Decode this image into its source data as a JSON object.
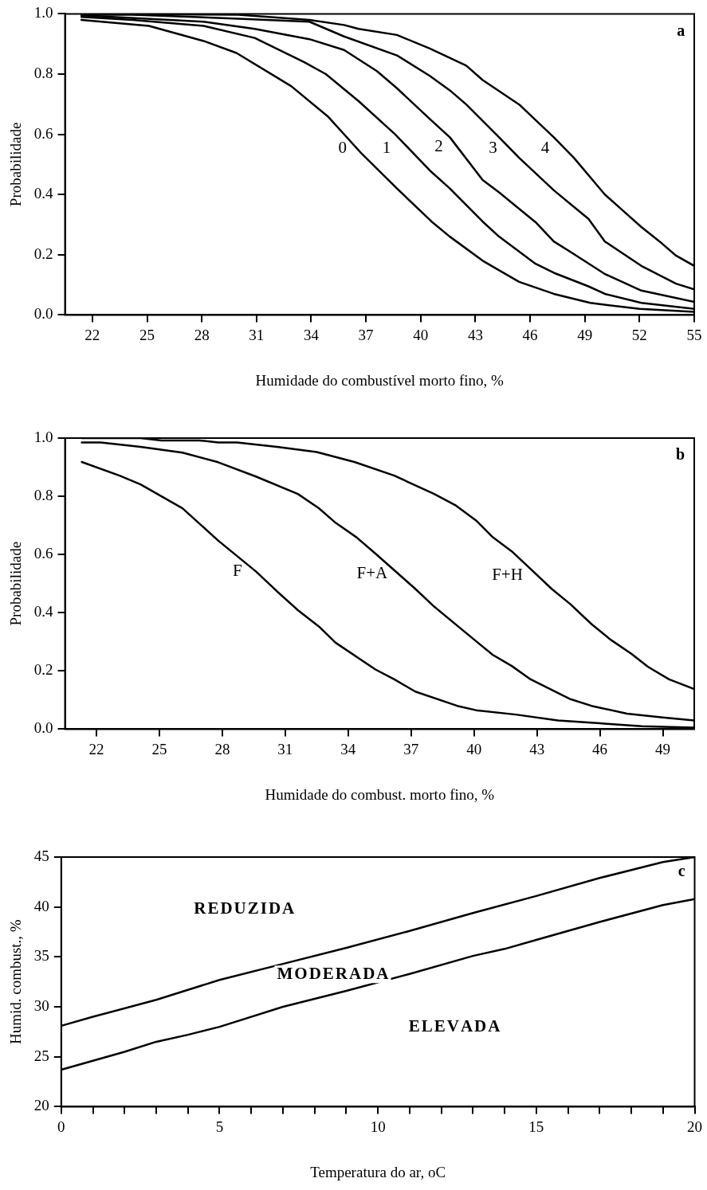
{
  "chart_data": [
    {
      "type": "line",
      "xlabel": "Humidade do combustível morto fino, %",
      "ylabel": "Probabilidade",
      "xlim": [
        20.5,
        55
      ],
      "xticks": [
        22,
        25,
        28,
        31,
        34,
        37,
        40,
        43,
        46,
        49,
        52,
        55
      ],
      "ylim": [
        0,
        1
      ],
      "yticks": [
        {
          "value": 0,
          "label": "0.0"
        },
        {
          "value": 0.2,
          "label": "0.2"
        },
        {
          "value": 0.4,
          "label": "0.4"
        },
        {
          "value": 0.6,
          "label": "0.6"
        },
        {
          "value": 0.8,
          "label": "0.8"
        },
        {
          "value": 1,
          "label": "1.0"
        }
      ],
      "legend": false,
      "marker": "none",
      "line_style": "solid",
      "series": [
        {
          "color": "#000000",
          "x": [
            21.4,
            25.1,
            28.1,
            29.9,
            32.9,
            34.9,
            36.7,
            38.7,
            40.6,
            41.6,
            43.4,
            45.4,
            47.3,
            49.3,
            52.0,
            55
          ],
          "values": [
            0.98,
            0.96,
            0.91,
            0.87,
            0.76,
            0.66,
            0.54,
            0.42,
            0.31,
            0.26,
            0.18,
            0.11,
            0.07,
            0.04,
            0.02,
            0.01
          ]
        },
        {
          "color": "#000000",
          "x": [
            21.4,
            24.2,
            28.1,
            30.9,
            33.6,
            34.8,
            36.6,
            38.6,
            40.5,
            41.6,
            43.4,
            44.3,
            46.3,
            47.3,
            49.2,
            50.1,
            52.1,
            55
          ],
          "values": [
            0.99,
            0.98,
            0.96,
            0.92,
            0.84,
            0.8,
            0.71,
            0.6,
            0.48,
            0.42,
            0.31,
            0.26,
            0.17,
            0.14,
            0.095,
            0.07,
            0.04,
            0.02
          ]
        },
        {
          "color": "#000000",
          "x": [
            21.4,
            28.1,
            30.9,
            33.9,
            35.8,
            37.6,
            38.7,
            40.5,
            41.6,
            43.4,
            44.3,
            46.3,
            47.3,
            48.3,
            50.1,
            52.1,
            55
          ],
          "values": [
            0.995,
            0.974,
            0.95,
            0.916,
            0.88,
            0.81,
            0.753,
            0.651,
            0.59,
            0.448,
            0.407,
            0.308,
            0.244,
            0.206,
            0.136,
            0.081,
            0.043
          ]
        },
        {
          "color": "#000000",
          "x": [
            21.4,
            24.2,
            30.0,
            33.9,
            35.8,
            38.7,
            40.5,
            41.6,
            42.5,
            44.3,
            45.4,
            47.3,
            49.2,
            50.1,
            52.1,
            54.0,
            55
          ],
          "values": [
            0.997,
            0.997,
            0.984,
            0.974,
            0.925,
            0.862,
            0.794,
            0.746,
            0.699,
            0.59,
            0.522,
            0.414,
            0.319,
            0.244,
            0.163,
            0.104,
            0.085
          ]
        },
        {
          "color": "#000000",
          "x": [
            21.4,
            30.0,
            33.9,
            35.8,
            36.6,
            38.7,
            40.5,
            42.5,
            43.4,
            45.4,
            47.3,
            48.4,
            50.1,
            51.1,
            52.1,
            53.1,
            54.0,
            55
          ],
          "values": [
            1.0,
            0.997,
            0.98,
            0.963,
            0.95,
            0.93,
            0.885,
            0.828,
            0.78,
            0.699,
            0.59,
            0.522,
            0.4,
            0.346,
            0.292,
            0.244,
            0.197,
            0.163
          ]
        }
      ],
      "annotations": [
        "a",
        "0",
        "1",
        "2",
        "3",
        "4"
      ]
    },
    {
      "type": "line",
      "xlabel": "Humidade do combust. morto fino, %",
      "ylabel": "Probabilidade",
      "xlim": [
        20.5,
        50.5
      ],
      "xticks": [
        22,
        25,
        28,
        31,
        34,
        37,
        40,
        43,
        46,
        49
      ],
      "ylim": [
        0,
        1
      ],
      "yticks": [
        {
          "value": 0,
          "label": "0.0"
        },
        {
          "value": 0.2,
          "label": "0.2"
        },
        {
          "value": 0.4,
          "label": "0.4"
        },
        {
          "value": 0.6,
          "label": "0.6"
        },
        {
          "value": 0.8,
          "label": "0.8"
        },
        {
          "value": 1,
          "label": "1.0"
        }
      ],
      "legend": false,
      "marker": "none",
      "line_style": "solid",
      "series": [
        {
          "color": "#000000",
          "x": [
            21.3,
            23.1,
            24.1,
            26.1,
            27.8,
            29.6,
            30.6,
            31.6,
            32.6,
            33.4,
            35.3,
            36.2,
            37.2,
            39.2,
            40.1,
            42,
            44,
            46,
            48,
            50.5
          ],
          "values": [
            0.918,
            0.871,
            0.841,
            0.759,
            0.648,
            0.542,
            0.474,
            0.409,
            0.353,
            0.297,
            0.205,
            0.171,
            0.129,
            0.08,
            0.065,
            0.05,
            0.03,
            0.02,
            0.01,
            0.005
          ]
        },
        {
          "color": "#000000",
          "x": [
            21.3,
            22.2,
            24.1,
            26.1,
            27.8,
            29.6,
            31.6,
            32.6,
            33.4,
            34.4,
            35.3,
            37.2,
            38.1,
            40.0,
            40.9,
            41.8,
            42.7,
            44.6,
            45.6,
            47.3,
            49,
            50.5
          ],
          "values": [
            0.985,
            0.985,
            0.97,
            0.95,
            0.917,
            0.868,
            0.808,
            0.759,
            0.709,
            0.659,
            0.603,
            0.482,
            0.421,
            0.308,
            0.255,
            0.217,
            0.171,
            0.103,
            0.08,
            0.053,
            0.04,
            0.03
          ]
        },
        {
          "color": "#000000",
          "x": [
            21.3,
            24.1,
            25.1,
            26.9,
            27.8,
            28.7,
            30.6,
            32.5,
            34.3,
            36.2,
            38.1,
            39.1,
            40.1,
            40.9,
            41.8,
            42.7,
            43.7,
            44.6,
            45.6,
            46.5,
            47.5,
            48.3,
            49.3,
            50.5
          ],
          "values": [
            1.0,
            1.0,
            0.992,
            0.992,
            0.985,
            0.985,
            0.97,
            0.952,
            0.918,
            0.871,
            0.808,
            0.77,
            0.717,
            0.659,
            0.611,
            0.55,
            0.482,
            0.429,
            0.361,
            0.308,
            0.259,
            0.214,
            0.171,
            0.138
          ]
        }
      ],
      "annotations": [
        "b",
        "F",
        "F+A",
        "F+H"
      ]
    },
    {
      "type": "line",
      "xlabel": "Temperatura do ar, oC",
      "ylabel": "Humid. combust., %",
      "xlim": [
        0,
        20
      ],
      "xticks": [
        0,
        {
          "value": 1,
          "label": null
        },
        {
          "value": 2,
          "label": null
        },
        {
          "value": 3,
          "label": null
        },
        {
          "value": 4,
          "label": null
        },
        5,
        {
          "value": 6,
          "label": null
        },
        {
          "value": 7,
          "label": null
        },
        {
          "value": 8,
          "label": null
        },
        {
          "value": 9,
          "label": null
        },
        10,
        {
          "value": 11,
          "label": null
        },
        {
          "value": 12,
          "label": null
        },
        {
          "value": 13,
          "label": null
        },
        {
          "value": 14,
          "label": null
        },
        15,
        {
          "value": 16,
          "label": null
        },
        {
          "value": 17,
          "label": null
        },
        {
          "value": 18,
          "label": null
        },
        {
          "value": 19,
          "label": null
        },
        20
      ],
      "ylim": [
        20,
        45
      ],
      "yticks": [
        20,
        25,
        30,
        35,
        40,
        45
      ],
      "legend": false,
      "marker": "none",
      "line_style": "solid",
      "series": [
        {
          "color": "#000000",
          "x": [
            0,
            1,
            3,
            5,
            7,
            9,
            11,
            13,
            15,
            17,
            19,
            20
          ],
          "values": [
            28.1,
            29.0,
            30.7,
            32.7,
            34.3,
            35.9,
            37.6,
            39.4,
            41.1,
            42.9,
            44.5,
            45
          ]
        },
        {
          "color": "#000000",
          "x": [
            0,
            1,
            2,
            3,
            4,
            5,
            7,
            9,
            11,
            13,
            14,
            15,
            17,
            19,
            20
          ],
          "values": [
            23.7,
            24.6,
            25.5,
            26.5,
            27.2,
            28.0,
            30.0,
            31.6,
            33.3,
            35.1,
            35.8,
            36.7,
            38.5,
            40.2,
            40.8
          ]
        }
      ],
      "annotations": [
        "c",
        "REDUZIDA",
        "MODERADA",
        "ELEVADA"
      ]
    }
  ]
}
